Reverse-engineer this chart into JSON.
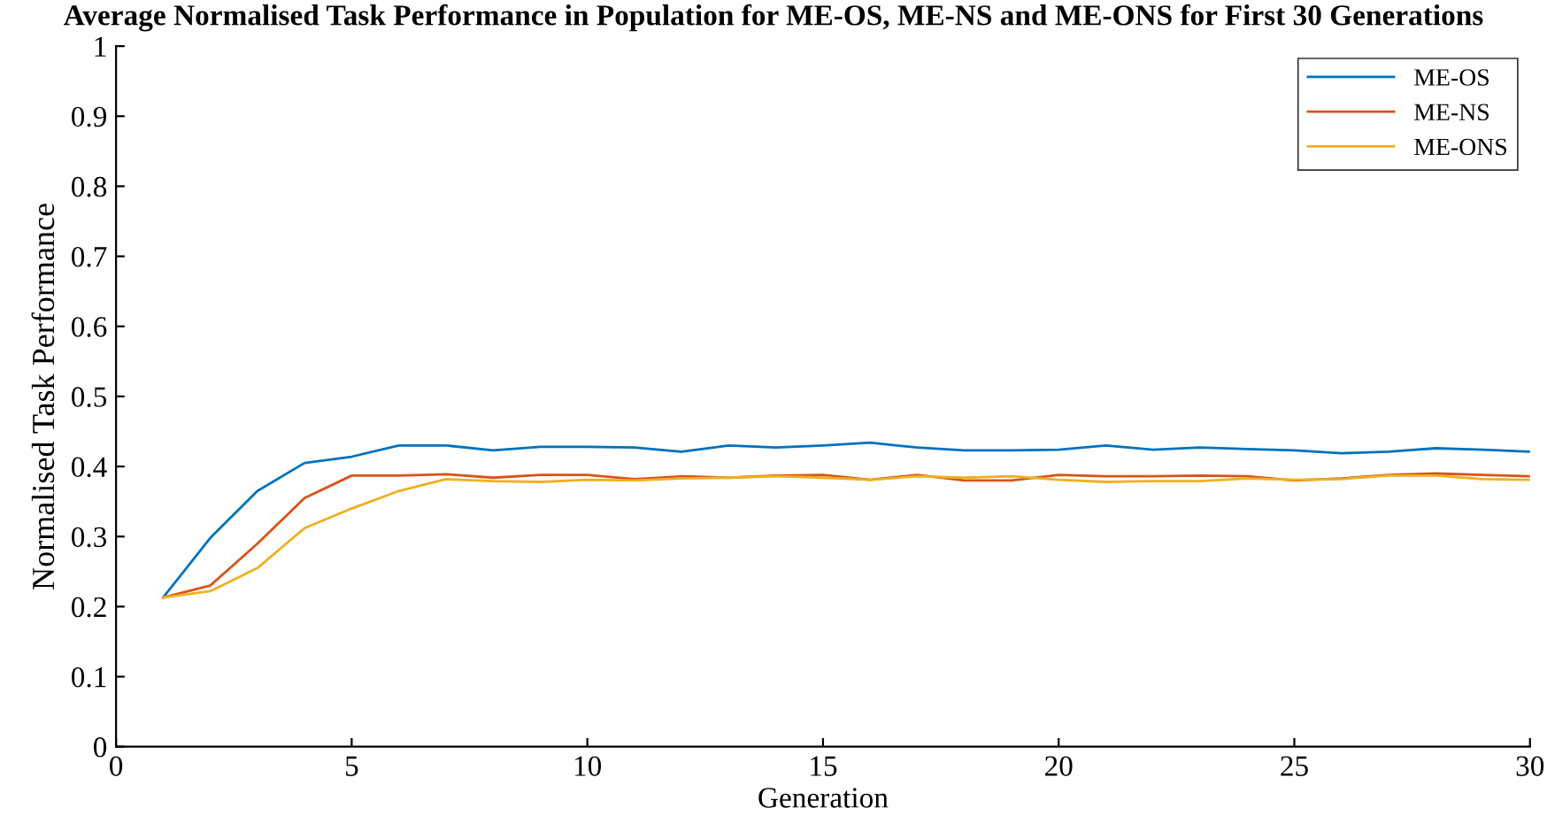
{
  "chart_data": {
    "type": "line",
    "title": "Average Normalised Task Performance in Population for ME-OS, ME-NS and ME-ONS for First 30 Generations",
    "xlabel": "Generation",
    "ylabel": "Normalised Task Performance",
    "x": [
      1,
      2,
      3,
      4,
      5,
      6,
      7,
      8,
      9,
      10,
      11,
      12,
      13,
      14,
      15,
      16,
      17,
      18,
      19,
      20,
      21,
      22,
      23,
      24,
      25,
      26,
      27,
      28,
      29,
      30
    ],
    "xlim": [
      0,
      30
    ],
    "xticks": [
      0,
      5,
      10,
      15,
      20,
      25,
      30
    ],
    "ylim": [
      0,
      1
    ],
    "yticks": [
      0,
      0.1,
      0.2,
      0.3,
      0.4,
      0.5,
      0.6,
      0.7,
      0.8,
      0.9,
      1
    ],
    "grid": false,
    "legend": "top right",
    "marker": "none",
    "line_style": "solid",
    "series": [
      {
        "name": "ME-OS",
        "color": "#0072bd",
        "values": [
          0.213,
          0.298,
          0.365,
          0.405,
          0.414,
          0.43,
          0.43,
          0.423,
          0.428,
          0.428,
          0.427,
          0.421,
          0.43,
          0.427,
          0.43,
          0.434,
          0.427,
          0.423,
          0.423,
          0.424,
          0.43,
          0.424,
          0.427,
          0.425,
          0.423,
          0.419,
          0.421,
          0.426,
          0.424,
          0.421
        ]
      },
      {
        "name": "ME-NS",
        "color": "#d95319",
        "values": [
          0.213,
          0.23,
          0.29,
          0.355,
          0.387,
          0.387,
          0.389,
          0.384,
          0.388,
          0.388,
          0.382,
          0.386,
          0.384,
          0.387,
          0.388,
          0.381,
          0.388,
          0.38,
          0.38,
          0.388,
          0.386,
          0.386,
          0.387,
          0.386,
          0.38,
          0.383,
          0.388,
          0.39,
          0.388,
          0.386
        ]
      },
      {
        "name": "ME-ONS",
        "color": "#edb120",
        "values": [
          0.213,
          0.222,
          0.255,
          0.312,
          0.34,
          0.365,
          0.382,
          0.379,
          0.378,
          0.381,
          0.38,
          0.383,
          0.384,
          0.386,
          0.384,
          0.381,
          0.386,
          0.384,
          0.386,
          0.381,
          0.378,
          0.379,
          0.379,
          0.383,
          0.381,
          0.382,
          0.387,
          0.387,
          0.382,
          0.381
        ]
      }
    ]
  }
}
